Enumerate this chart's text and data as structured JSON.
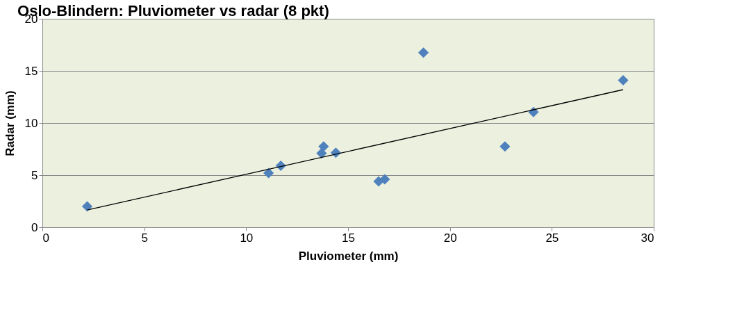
{
  "chart_data": {
    "type": "scatter",
    "title": "Oslo-Blindern: Pluviometer vs radar (8 pkt)",
    "xlabel": "Pluviometer (mm)",
    "ylabel": "Radar (mm)",
    "xlim": [
      0,
      30
    ],
    "xticks": [
      0,
      5,
      10,
      15,
      20,
      25,
      30
    ],
    "ylim": [
      0,
      20
    ],
    "yticks": [
      0,
      5,
      10,
      15,
      20
    ],
    "grid": "y",
    "series": [
      {
        "marker": "diamond",
        "color": "#4f81bd",
        "x": [
          2.2,
          11.1,
          11.7,
          13.7,
          13.8,
          14.4,
          16.5,
          16.8,
          18.7,
          22.7,
          24.1,
          28.5
        ],
        "values": [
          2.0,
          5.2,
          5.9,
          7.1,
          7.75,
          7.15,
          4.4,
          4.6,
          16.75,
          7.75,
          11.05,
          14.1
        ]
      },
      {
        "type": "line",
        "marker": "none",
        "color": "#000000",
        "x": [
          2.2,
          28.5
        ],
        "values": [
          1.66,
          13.2
        ]
      }
    ]
  }
}
